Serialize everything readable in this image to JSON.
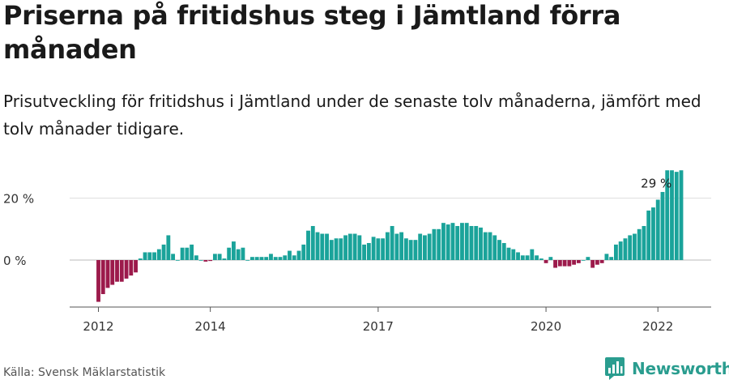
{
  "header": {
    "title": "Priserna på fritidshus steg i Jämtland förra månaden",
    "subtitle": "Prisutveckling för fritidshus i Jämtland under de senaste tolv månaderna, jämfört med tolv månader tidigare."
  },
  "footer": {
    "source": "Källa: Svensk Mäklarstatistik",
    "brand": "Newsworthy",
    "brand_icon": "bar-chart-logo-icon"
  },
  "colors": {
    "positive": "#1aa39a",
    "negative": "#9c1a4b",
    "grid": "#dddddd",
    "axis": "#555555",
    "brand": "#2a9d8f"
  },
  "chart_data": {
    "type": "bar",
    "title": "Priserna på fritidshus steg i Jämtland förra månaden",
    "xlabel": "",
    "ylabel": "",
    "ylim": [
      -15,
      32
    ],
    "y_ticks": [
      0,
      20
    ],
    "y_tick_labels": [
      "0 %",
      "20 %"
    ],
    "x_tick_labels": [
      "2012",
      "2014",
      "2017",
      "2020",
      "2022"
    ],
    "x_tick_indices": [
      0,
      24,
      60,
      96,
      120
    ],
    "annotation": {
      "text": "29 %",
      "index": 120
    },
    "grid": true,
    "unit": "%",
    "start": "2012-01",
    "values": [
      -13.5,
      -11,
      -9,
      -8,
      -7,
      -7,
      -6,
      -5,
      -4,
      0.5,
      2.5,
      2.5,
      2.5,
      3.5,
      5,
      8,
      2,
      0,
      4,
      4,
      5,
      1.5,
      0,
      -0.5,
      -0.3,
      2,
      2,
      0.5,
      4,
      6,
      3.5,
      4,
      0,
      1,
      1,
      1,
      1,
      2,
      1,
      1,
      1.5,
      3,
      1.5,
      3,
      5,
      9.5,
      11,
      9,
      8.5,
      8.5,
      6.5,
      7,
      7,
      8,
      8.5,
      8.5,
      8,
      5,
      5.5,
      7.5,
      7,
      7,
      9,
      11,
      8.5,
      9,
      7,
      6.5,
      6.5,
      8.5,
      8,
      8.5,
      10,
      10,
      12,
      11.5,
      12,
      11,
      12,
      12,
      11,
      11,
      10.5,
      9,
      9,
      8,
      6.5,
      5.5,
      4,
      3.5,
      2.5,
      1.5,
      1.5,
      3.5,
      1.5,
      0.5,
      -1,
      1,
      -2.5,
      -2,
      -2,
      -2,
      -1.5,
      -1,
      0,
      1,
      -2.5,
      -1.5,
      -1,
      2,
      1,
      5,
      6,
      7,
      8,
      8.5,
      10,
      11,
      16,
      17,
      19.5,
      22,
      29,
      29,
      28.5,
      29
    ]
  }
}
